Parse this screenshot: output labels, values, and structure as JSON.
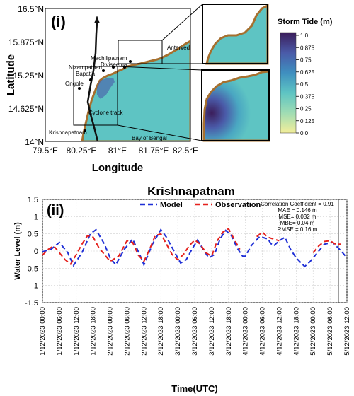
{
  "map": {
    "panel_label": "(i)",
    "ylabel": "Latitude",
    "xlabel": "Longitude",
    "lat_ticks": [
      "16.5°N",
      "15.875°N",
      "15.25°N",
      "14.625°N",
      "14°N"
    ],
    "lon_ticks": [
      "79.5°E",
      "80.25°E",
      "81°E",
      "81.75°E",
      "82.5°E"
    ],
    "places": [
      "Antervedi",
      "Machilipatnam",
      "Diviseema",
      "Nizampatnam",
      "Bapatla",
      "Ongole",
      "Krishnapatnam"
    ],
    "cyclone_track_label": "Cyclone track",
    "sea_label": "Bay of Bengal",
    "colorbar": {
      "title": "Storm Tide (m)",
      "ticks": [
        "1.0",
        "0.875",
        "0.75",
        "0.625",
        "0.5",
        "0.375",
        "0.25",
        "0.125",
        "0.0"
      ]
    },
    "colors": {
      "sea": "#5ec4c3",
      "land": "#ffffff",
      "coast": "#a66f2e",
      "track": "#111111"
    }
  },
  "chart_data": {
    "type": "line",
    "panel_label": "(ii)",
    "title": "Krishnapatnam",
    "xlabel": "Time(UTC)",
    "ylabel": "Water Level (m)",
    "ylim": [
      -1.5,
      1.5
    ],
    "yticks": [
      "1.5",
      "1",
      "0.5",
      "0",
      "-0.5",
      "-1",
      "-1.5"
    ],
    "xticks": [
      "1/12/2023 00:00",
      "1/12/2023 06:00",
      "1/12/2023 12:00",
      "1/12/2023 18:00",
      "2/12/2023 00:00",
      "2/12/2023 06:00",
      "2/12/2023 12:00",
      "2/12/2023 18:00",
      "3/12/2023 00:00",
      "3/12/2023 06:00",
      "3/12/2023 12:00",
      "3/12/2023 18:00",
      "4/12/2023 00:00",
      "4/12/2023 06:00",
      "4/12/2023 12:00",
      "4/12/2023 18:00",
      "5/12/2023 00:00",
      "5/12/2023 06:00",
      "5/12/2023 12:00"
    ],
    "x_hours_range": [
      0,
      108
    ],
    "grid": true,
    "legend_position": "top",
    "series": [
      {
        "name": "Model",
        "color": "#1f2fd6",
        "points": [
          [
            0,
            -0.02
          ],
          [
            3,
            0.05
          ],
          [
            6,
            0.25
          ],
          [
            9,
            -0.05
          ],
          [
            11,
            -0.42
          ],
          [
            14,
            -0.05
          ],
          [
            17,
            0.5
          ],
          [
            19,
            0.62
          ],
          [
            22,
            0.2
          ],
          [
            24,
            -0.2
          ],
          [
            26,
            -0.4
          ],
          [
            29,
            0.05
          ],
          [
            32,
            0.35
          ],
          [
            35,
            -0.2
          ],
          [
            36,
            -0.4
          ],
          [
            39,
            0.2
          ],
          [
            42,
            0.62
          ],
          [
            44,
            0.4
          ],
          [
            47,
            -0.05
          ],
          [
            49,
            -0.35
          ],
          [
            51,
            -0.25
          ],
          [
            53,
            0.05
          ],
          [
            55,
            0.32
          ],
          [
            57,
            0.05
          ],
          [
            59,
            -0.2
          ],
          [
            61,
            -0.1
          ],
          [
            63,
            0.35
          ],
          [
            65,
            0.6
          ],
          [
            67,
            0.45
          ],
          [
            69,
            0.1
          ],
          [
            71,
            -0.15
          ],
          [
            72,
            -0.15
          ],
          [
            74,
            0.15
          ],
          [
            77,
            0.42
          ],
          [
            78,
            0.4
          ],
          [
            80,
            0.35
          ],
          [
            81,
            0.22
          ],
          [
            82,
            0.15
          ],
          [
            84,
            0.3
          ],
          [
            86,
            0.4
          ],
          [
            88,
            0.05
          ],
          [
            90,
            -0.2
          ],
          [
            93,
            -0.45
          ],
          [
            95,
            -0.3
          ],
          [
            98,
            0.0
          ],
          [
            100,
            0.2
          ],
          [
            103,
            0.25
          ],
          [
            106,
            0.0
          ],
          [
            108,
            -0.2
          ]
        ]
      },
      {
        "name": "Observation",
        "color": "#e5211d",
        "segments": [
          [
            [
              0,
              -0.12
            ],
            [
              2,
              0.05
            ],
            [
              4,
              0.15
            ],
            [
              6,
              -0.05
            ],
            [
              8,
              -0.25
            ],
            [
              10,
              -0.38
            ],
            [
              12,
              -0.1
            ],
            [
              14,
              0.2
            ],
            [
              16,
              0.45
            ],
            [
              18,
              0.4
            ],
            [
              20,
              0.1
            ],
            [
              22,
              -0.1
            ],
            [
              24,
              -0.3
            ],
            [
              27,
              -0.15
            ],
            [
              30,
              0.3
            ],
            [
              32,
              0.25
            ],
            [
              34,
              -0.12
            ],
            [
              36,
              -0.3
            ],
            [
              38,
              0.05
            ],
            [
              40,
              0.45
            ],
            [
              42,
              0.5
            ],
            [
              44,
              0.2
            ],
            [
              46,
              -0.1
            ],
            [
              48,
              -0.25
            ],
            [
              50,
              -0.1
            ],
            [
              52,
              0.15
            ],
            [
              54,
              0.32
            ],
            [
              56,
              0.2
            ],
            [
              58,
              -0.05
            ],
            [
              60,
              -0.15
            ],
            [
              62,
              0.3
            ],
            [
              64,
              0.55
            ],
            [
              66,
              0.65
            ],
            [
              68,
              0.35
            ],
            [
              70,
              0.05
            ]
          ],
          [
            [
              76,
              0.42
            ],
            [
              78,
              0.55
            ],
            [
              80,
              0.4
            ],
            [
              82,
              0.35
            ],
            [
              84,
              0.3
            ]
          ],
          [
            [
              96,
              -0.05
            ],
            [
              98,
              0.15
            ],
            [
              100,
              0.28
            ],
            [
              102,
              0.3
            ],
            [
              104,
              0.2
            ],
            [
              106,
              0.2
            ]
          ]
        ]
      }
    ],
    "stats_box": {
      "lines": [
        "Correlation Coefficient = 0.91",
        "MAE = 0.146 m",
        "MSE= 0.032 m",
        "MBE= 0.04 m",
        "RMSE = 0.16 m"
      ]
    },
    "vertical_marker_hour": 105
  }
}
